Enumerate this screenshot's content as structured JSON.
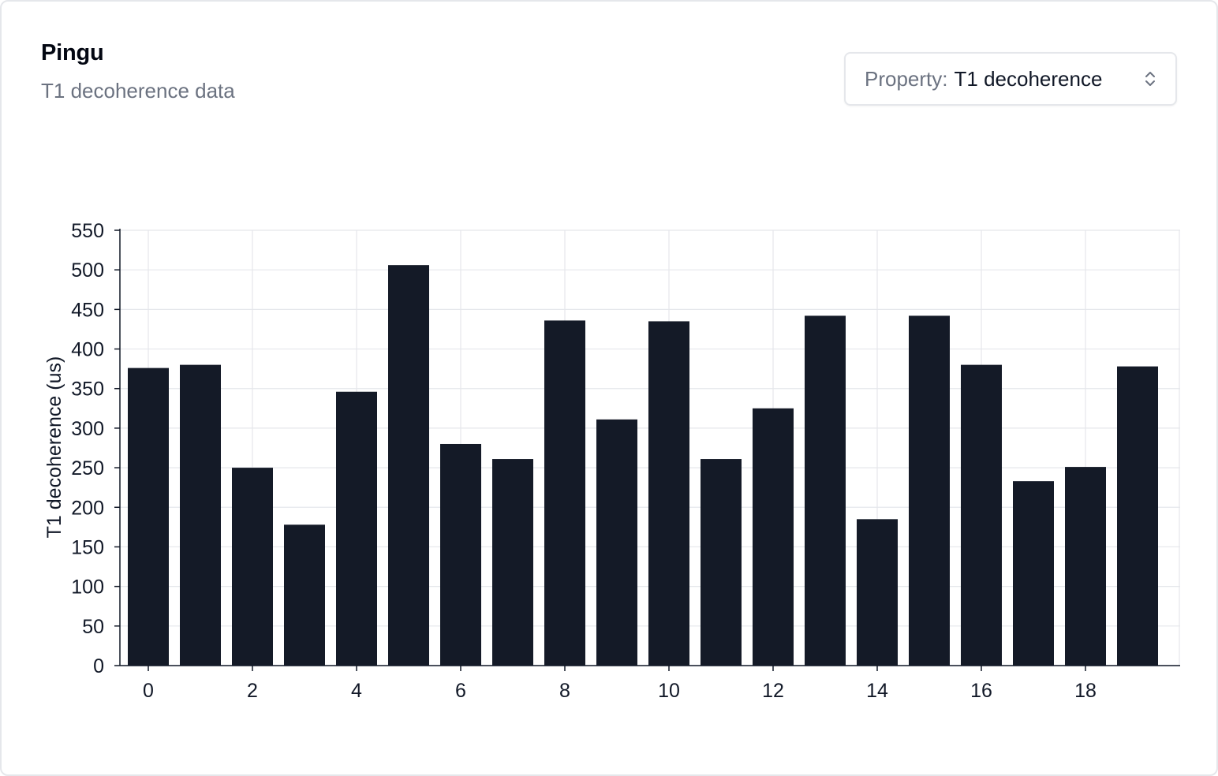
{
  "card": {
    "title": "Pingu",
    "subtitle": "T1 decoherence data"
  },
  "property_select": {
    "label": "Property:",
    "value": "T1 decoherence",
    "icon": "chevron-up-down-icon"
  },
  "colors": {
    "bar": "#141a27",
    "grid": "#e5e7eb",
    "axis": "#111827"
  },
  "chart_data": {
    "type": "bar",
    "title": "",
    "xlabel": "",
    "ylabel": "T1 decoherence (us)",
    "categories": [
      0,
      1,
      2,
      3,
      4,
      5,
      6,
      7,
      8,
      9,
      10,
      11,
      12,
      13,
      14,
      15,
      16,
      17,
      18,
      19
    ],
    "values": [
      376,
      380,
      250,
      178,
      346,
      506,
      280,
      261,
      436,
      311,
      435,
      261,
      325,
      442,
      185,
      442,
      380,
      233,
      251,
      378
    ],
    "x_tick_labels": [
      "0",
      "2",
      "4",
      "6",
      "8",
      "10",
      "12",
      "14",
      "16",
      "18"
    ],
    "y_ticks": [
      0,
      50,
      100,
      150,
      200,
      250,
      300,
      350,
      400,
      450,
      500,
      550
    ],
    "ylim": [
      0,
      550
    ],
    "grid": true,
    "legend": "none"
  }
}
